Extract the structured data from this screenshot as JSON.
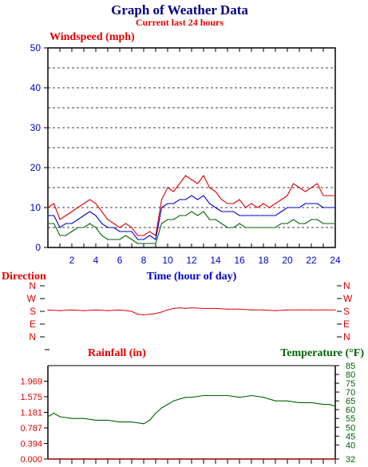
{
  "title": "Graph of Weather Data",
  "subtitle": "Current last 24 hours",
  "colors": {
    "title": "#000080",
    "red": "#e00000",
    "blue": "#0000cc",
    "green": "#006400",
    "axis": "#000000",
    "grid": "#000000"
  },
  "chart_data": [
    {
      "type": "line",
      "panel": "wind",
      "ylabel": "Windspeed (mph)",
      "xlabel": "Time (hour of day)",
      "xlim": [
        0,
        24
      ],
      "ylim": [
        0,
        50
      ],
      "x_ticks": [
        2,
        4,
        6,
        8,
        10,
        12,
        14,
        16,
        18,
        20,
        22,
        24
      ],
      "y_ticks": [
        0,
        10,
        20,
        30,
        40,
        50
      ],
      "grid": true,
      "series": [
        {
          "color": "red",
          "x": [
            0,
            0.5,
            1,
            1.5,
            2,
            2.5,
            3,
            3.5,
            4,
            4.5,
            5,
            5.5,
            6,
            6.5,
            7,
            7.5,
            8,
            8.5,
            9,
            9.5,
            10,
            10.5,
            11,
            11.5,
            12,
            12.5,
            13,
            13.5,
            14,
            14.5,
            15,
            15.5,
            16,
            16.5,
            17,
            17.5,
            18,
            18.5,
            19,
            19.5,
            20,
            20.5,
            21,
            21.5,
            22,
            22.5,
            23,
            23.5,
            24
          ],
          "values": [
            10,
            11,
            7,
            8,
            9,
            10,
            11,
            12,
            11,
            9,
            7,
            6,
            5,
            6,
            5,
            3,
            3,
            4,
            3,
            12,
            15,
            14,
            16,
            18,
            17,
            16,
            18,
            15,
            14,
            12,
            11,
            11,
            12,
            10,
            11,
            10,
            11,
            10,
            11,
            12,
            13,
            16,
            15,
            14,
            15,
            16,
            13,
            13,
            13
          ]
        },
        {
          "color": "blue",
          "x": [
            0,
            0.5,
            1,
            1.5,
            2,
            2.5,
            3,
            3.5,
            4,
            4.5,
            5,
            5.5,
            6,
            6.5,
            7,
            7.5,
            8,
            8.5,
            9,
            9.5,
            10,
            10.5,
            11,
            11.5,
            12,
            12.5,
            13,
            13.5,
            14,
            14.5,
            15,
            15.5,
            16,
            16.5,
            17,
            17.5,
            18,
            18.5,
            19,
            19.5,
            20,
            20.5,
            21,
            21.5,
            22,
            22.5,
            23,
            23.5,
            24
          ],
          "values": [
            8,
            8,
            5,
            6,
            6,
            7,
            8,
            9,
            8,
            6,
            5,
            5,
            4,
            4,
            4,
            2,
            2,
            3,
            2,
            10,
            11,
            11,
            12,
            12,
            13,
            12,
            13,
            11,
            10,
            9,
            9,
            9,
            8,
            8,
            8,
            8,
            8,
            8,
            8,
            9,
            10,
            10,
            10,
            11,
            11,
            11,
            10,
            10,
            10
          ]
        },
        {
          "color": "green",
          "x": [
            0,
            0.5,
            1,
            1.5,
            2,
            2.5,
            3,
            3.5,
            4,
            4.5,
            5,
            5.5,
            6,
            6.5,
            7,
            7.5,
            8,
            8.5,
            9,
            9.5,
            10,
            10.5,
            11,
            11.5,
            12,
            12.5,
            13,
            13.5,
            14,
            14.5,
            15,
            15.5,
            16,
            16.5,
            17,
            17.5,
            18,
            18.5,
            19,
            19.5,
            20,
            20.5,
            21,
            21.5,
            22,
            22.5,
            23,
            23.5,
            24
          ],
          "values": [
            6,
            6,
            3,
            3,
            4,
            5,
            5,
            6,
            5,
            3,
            2,
            2,
            2,
            3,
            2,
            1,
            1,
            1,
            1,
            6,
            7,
            7,
            8,
            8,
            9,
            8,
            9,
            7,
            7,
            6,
            5,
            5,
            6,
            5,
            5,
            5,
            5,
            5,
            5,
            6,
            6,
            7,
            6,
            6,
            7,
            7,
            6,
            6,
            6
          ]
        }
      ]
    },
    {
      "type": "line",
      "panel": "direction",
      "ylabel": "Direction",
      "xlim": [
        0,
        24
      ],
      "y_categories": [
        "N",
        "W",
        "S",
        "E",
        "N"
      ],
      "series": [
        {
          "color": "red",
          "x": [
            0,
            1,
            2,
            3,
            4,
            5,
            6,
            7,
            7.5,
            8,
            8.5,
            9,
            9.5,
            10,
            10.5,
            11,
            11.5,
            12,
            13,
            14,
            15,
            16,
            17,
            18,
            19,
            20,
            21,
            22,
            23,
            24
          ],
          "values": [
            190,
            185,
            190,
            185,
            190,
            185,
            190,
            180,
            160,
            155,
            160,
            165,
            175,
            190,
            200,
            205,
            200,
            205,
            200,
            200,
            195,
            195,
            190,
            190,
            185,
            190,
            190,
            190,
            190,
            190
          ]
        }
      ]
    },
    {
      "type": "line",
      "panel": "rain_temp",
      "ylabel": "Rainfall (in)",
      "y2label": "Temperature (°F)",
      "xlim": [
        0,
        24
      ],
      "ylim": [
        0,
        2.363
      ],
      "y_ticks": [
        "0.000",
        "0.394",
        "0.787",
        "1.181",
        "1.575",
        "1.969"
      ],
      "y2lim": [
        32,
        85
      ],
      "y2_ticks": [
        32,
        40,
        45,
        50,
        55,
        60,
        65,
        70,
        75,
        80,
        85
      ],
      "series": [
        {
          "color": "green",
          "axis": "right",
          "x": [
            0,
            0.5,
            1,
            2,
            3,
            4,
            5,
            6,
            7,
            8,
            8.5,
            9,
            9.5,
            10,
            10.5,
            11,
            11.5,
            12,
            13,
            14,
            15,
            16,
            17,
            18,
            19,
            20,
            21,
            22,
            23,
            23.5,
            24
          ],
          "values": [
            56,
            58,
            56,
            55,
            55,
            54,
            54,
            53,
            53,
            52,
            54,
            58,
            61,
            63,
            65,
            66,
            67,
            67,
            68,
            68,
            68,
            67,
            68,
            67,
            65,
            65,
            64,
            64,
            63,
            63,
            62
          ]
        },
        {
          "color": "red",
          "axis": "left",
          "x": [
            0,
            24
          ],
          "values": [
            0,
            0
          ]
        }
      ]
    }
  ]
}
